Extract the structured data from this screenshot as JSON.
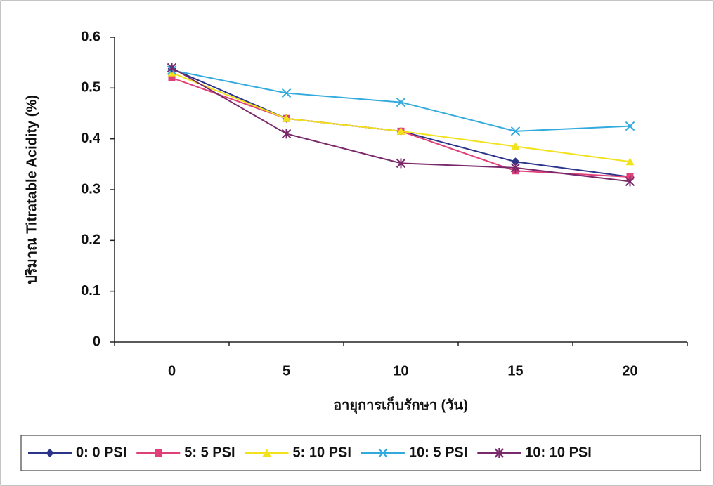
{
  "chart_data": {
    "type": "line",
    "categories": [
      "0",
      "5",
      "10",
      "15",
      "20"
    ],
    "x_label": "อายุการเก็บรักษา (วัน)",
    "y_label": "ปริมาณ Titratable Acidity (%)",
    "ylim": [
      0,
      0.6
    ],
    "yticks": [
      0,
      0.1,
      0.2,
      0.3,
      0.4,
      0.5,
      0.6
    ],
    "grid": false,
    "legend": "bottom",
    "series": [
      {
        "name": "0: 0 PSI",
        "color": "#2b3488",
        "marker": "diamond",
        "values": [
          0.538,
          0.44,
          0.415,
          0.355,
          0.325
        ]
      },
      {
        "name": "5: 5 PSI",
        "color": "#e0407a",
        "marker": "square",
        "values": [
          0.52,
          0.44,
          0.415,
          0.337,
          0.325
        ]
      },
      {
        "name": "5: 10 PSI",
        "color": "#f2e21c",
        "marker": "triangle",
        "values": [
          0.53,
          0.44,
          0.415,
          0.385,
          0.355
        ]
      },
      {
        "name": "10: 5 PSI",
        "color": "#33aadd",
        "marker": "x",
        "values": [
          0.535,
          0.49,
          0.472,
          0.415,
          0.425
        ]
      },
      {
        "name": "10: 10 PSI",
        "color": "#7a2a6a",
        "marker": "star",
        "values": [
          0.54,
          0.41,
          0.352,
          0.343,
          0.316
        ]
      }
    ]
  }
}
